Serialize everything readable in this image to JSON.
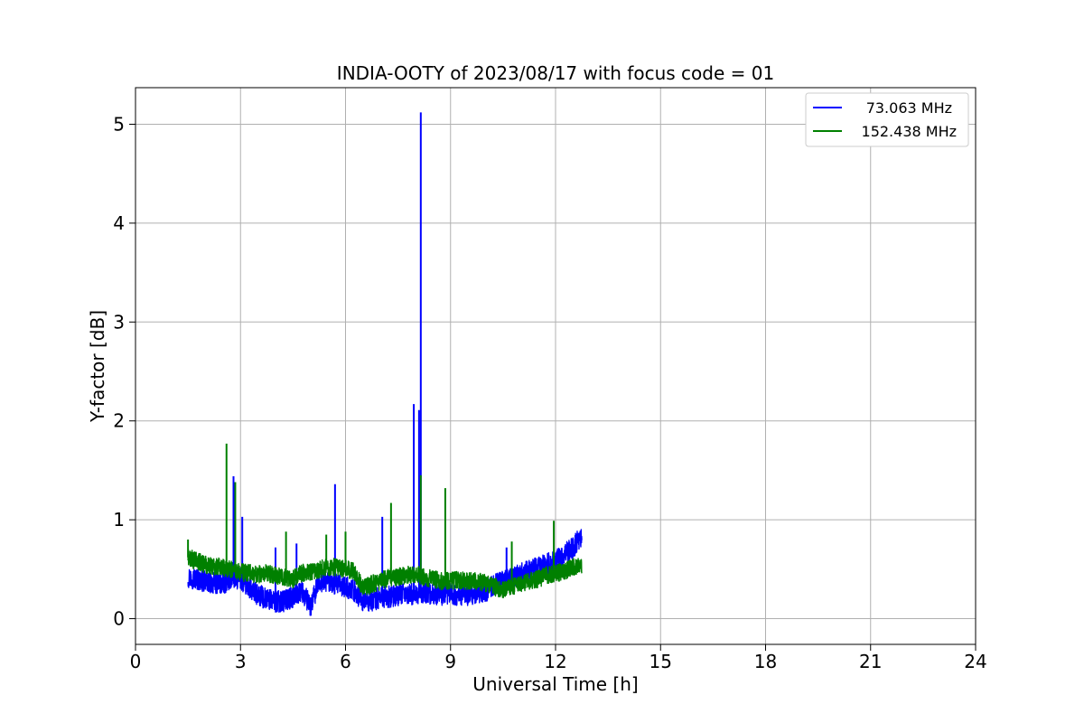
{
  "chart_data": {
    "type": "line",
    "title": "INDIA-OOTY of 2023/08/17 with focus code = 01",
    "xlabel": "Universal Time [h]",
    "ylabel": "Y-factor [dB]",
    "xlim": [
      0,
      24
    ],
    "ylim": [
      -0.26,
      5.37
    ],
    "xticks": [
      0,
      3,
      6,
      9,
      12,
      15,
      18,
      21,
      24
    ],
    "yticks": [
      0,
      1,
      2,
      3,
      4,
      5
    ],
    "grid": true,
    "legend_position": "top-right",
    "series": [
      {
        "name": "73.063 MHz",
        "color": "#0000ff",
        "x": [
          1.5,
          1.75,
          2.0,
          2.25,
          2.5,
          2.75,
          3.0,
          3.25,
          3.5,
          3.75,
          4.0,
          4.25,
          4.5,
          4.75,
          5.0,
          5.25,
          5.5,
          5.75,
          6.0,
          6.25,
          6.5,
          6.75,
          7.0,
          7.25,
          7.5,
          7.75,
          8.0,
          8.25,
          8.5,
          8.75,
          9.0,
          9.25,
          9.5,
          9.75,
          10.0,
          10.25,
          10.5,
          10.75,
          11.0,
          11.25,
          11.5,
          11.75,
          12.0,
          12.25,
          12.5,
          12.75
        ],
        "y": [
          0.42,
          0.4,
          0.37,
          0.36,
          0.35,
          0.42,
          0.4,
          0.3,
          0.24,
          0.2,
          0.17,
          0.18,
          0.22,
          0.28,
          0.12,
          0.38,
          0.38,
          0.34,
          0.32,
          0.28,
          0.18,
          0.18,
          0.22,
          0.22,
          0.24,
          0.25,
          0.25,
          0.26,
          0.25,
          0.24,
          0.25,
          0.24,
          0.24,
          0.26,
          0.27,
          0.35,
          0.38,
          0.42,
          0.46,
          0.48,
          0.52,
          0.55,
          0.58,
          0.65,
          0.72,
          0.85
        ],
        "spikes": [
          {
            "x": 2.8,
            "y": 1.44
          },
          {
            "x": 3.05,
            "y": 1.03
          },
          {
            "x": 4.0,
            "y": 0.72
          },
          {
            "x": 4.6,
            "y": 0.76
          },
          {
            "x": 5.7,
            "y": 1.36
          },
          {
            "x": 7.05,
            "y": 1.03
          },
          {
            "x": 7.95,
            "y": 2.17
          },
          {
            "x": 8.1,
            "y": 2.11
          },
          {
            "x": 8.15,
            "y": 5.12
          },
          {
            "x": 10.6,
            "y": 0.72
          }
        ]
      },
      {
        "name": "152.438 MHz",
        "color": "#008000",
        "x": [
          1.5,
          1.75,
          2.0,
          2.25,
          2.5,
          2.75,
          3.0,
          3.25,
          3.5,
          3.75,
          4.0,
          4.25,
          4.5,
          4.75,
          5.0,
          5.25,
          5.5,
          5.75,
          6.0,
          6.25,
          6.5,
          6.75,
          7.0,
          7.25,
          7.5,
          7.75,
          8.0,
          8.25,
          8.5,
          8.75,
          9.0,
          9.25,
          9.5,
          9.75,
          10.0,
          10.25,
          10.5,
          10.75,
          11.0,
          11.25,
          11.5,
          11.75,
          12.0,
          12.25,
          12.5,
          12.75
        ],
        "y": [
          0.62,
          0.58,
          0.55,
          0.53,
          0.52,
          0.5,
          0.47,
          0.46,
          0.45,
          0.46,
          0.44,
          0.42,
          0.4,
          0.46,
          0.48,
          0.5,
          0.52,
          0.52,
          0.5,
          0.48,
          0.3,
          0.35,
          0.38,
          0.42,
          0.42,
          0.44,
          0.45,
          0.42,
          0.4,
          0.38,
          0.38,
          0.39,
          0.38,
          0.38,
          0.36,
          0.32,
          0.3,
          0.32,
          0.35,
          0.38,
          0.4,
          0.44,
          0.46,
          0.48,
          0.52,
          0.55
        ],
        "spikes": [
          {
            "x": 1.5,
            "y": 0.8
          },
          {
            "x": 2.6,
            "y": 1.77
          },
          {
            "x": 2.85,
            "y": 1.38
          },
          {
            "x": 4.3,
            "y": 0.88
          },
          {
            "x": 5.45,
            "y": 0.85
          },
          {
            "x": 6.0,
            "y": 0.88
          },
          {
            "x": 7.3,
            "y": 1.17
          },
          {
            "x": 8.15,
            "y": 1.45
          },
          {
            "x": 8.85,
            "y": 1.32
          },
          {
            "x": 10.75,
            "y": 0.78
          },
          {
            "x": 11.95,
            "y": 0.99
          }
        ]
      }
    ]
  }
}
